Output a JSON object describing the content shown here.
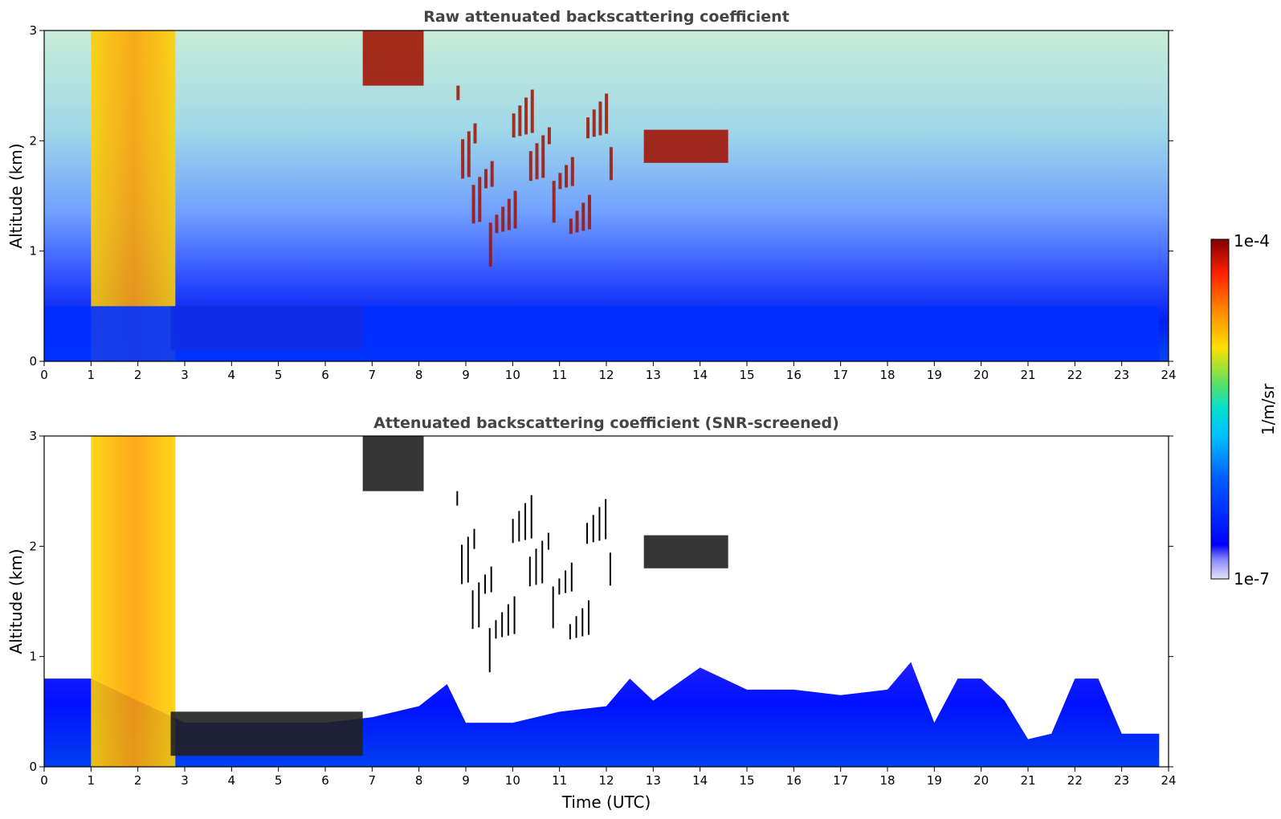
{
  "chart_data": [
    {
      "type": "heatmap",
      "title": "Raw attenuated backscattering coefficient",
      "xlabel": "",
      "ylabel": "Altitude (km)",
      "xlim": [
        0,
        24
      ],
      "ylim": [
        0,
        3
      ],
      "xticks": [
        "0",
        "1",
        "2",
        "3",
        "4",
        "5",
        "6",
        "7",
        "8",
        "9",
        "10",
        "11",
        "12",
        "13",
        "14",
        "15",
        "16",
        "17",
        "18",
        "19",
        "20",
        "21",
        "22",
        "23",
        "24"
      ],
      "yticks": [
        "0",
        "1",
        "2",
        "3"
      ],
      "features": [
        {
          "feature": "dense aerosol/cloud plume",
          "x_range": [
            1.0,
            2.8
          ],
          "y_range": [
            0,
            3
          ],
          "level": "high"
        },
        {
          "feature": "low boundary layer layer",
          "x_range": [
            2.7,
            6.8
          ],
          "y_range": [
            0.1,
            0.5
          ],
          "level": "very high"
        },
        {
          "feature": "scattered cloud filaments",
          "x_range": [
            8.8,
            12.1
          ],
          "y_range": [
            0.7,
            2.5
          ],
          "level": "very high"
        },
        {
          "feature": "cloud patches near 2 km",
          "x_range": [
            12.8,
            14.6
          ],
          "y_range": [
            1.8,
            2.1
          ],
          "level": "very high"
        },
        {
          "feature": "upper-left cloud top",
          "x_range": [
            6.8,
            8.1
          ],
          "y_range": [
            2.5,
            3
          ],
          "level": "very high"
        },
        {
          "feature": "near-surface signal",
          "x_range": [
            0,
            23.8
          ],
          "y_range": [
            0,
            0.5
          ],
          "level": "low"
        }
      ]
    },
    {
      "type": "heatmap",
      "title": "Attenuated backscattering coefficient (SNR-screened)",
      "xlabel": "Time (UTC)",
      "ylabel": "Altitude (km)",
      "xlim": [
        0,
        24
      ],
      "ylim": [
        0,
        3
      ],
      "xticks": [
        "0",
        "1",
        "2",
        "3",
        "4",
        "5",
        "6",
        "7",
        "8",
        "9",
        "10",
        "11",
        "12",
        "13",
        "14",
        "15",
        "16",
        "17",
        "18",
        "19",
        "20",
        "21",
        "22",
        "23",
        "24"
      ],
      "yticks": [
        "0",
        "1",
        "2",
        "3"
      ],
      "boundary_layer_top_km": {
        "x": [
          0,
          1,
          3,
          6,
          7,
          8,
          8.6,
          9,
          10,
          11,
          12,
          12.5,
          13,
          14,
          15,
          16,
          17,
          18,
          18.5,
          19,
          19.5,
          20,
          20.5,
          21,
          21.5,
          22,
          22.5,
          23,
          23.8
        ],
        "y": [
          0.8,
          0.8,
          0.4,
          0.4,
          0.45,
          0.55,
          0.75,
          0.4,
          0.4,
          0.5,
          0.55,
          0.8,
          0.6,
          0.9,
          0.7,
          0.7,
          0.65,
          0.7,
          0.95,
          0.4,
          0.8,
          0.8,
          0.6,
          0.25,
          0.3,
          0.8,
          0.8,
          0.3,
          0.3
        ]
      }
    }
  ],
  "colorbar": {
    "label": "1/m/sr",
    "max_label": "1e-4",
    "min_label": "1e-7",
    "scale": "log",
    "range": [
      1e-07,
      0.0001
    ],
    "colormap": [
      "#e6e6f8",
      "#0000ff",
      "#0090ff",
      "#00e0e0",
      "#60e060",
      "#ffe000",
      "#ff8000",
      "#ff2000",
      "#800000"
    ]
  }
}
